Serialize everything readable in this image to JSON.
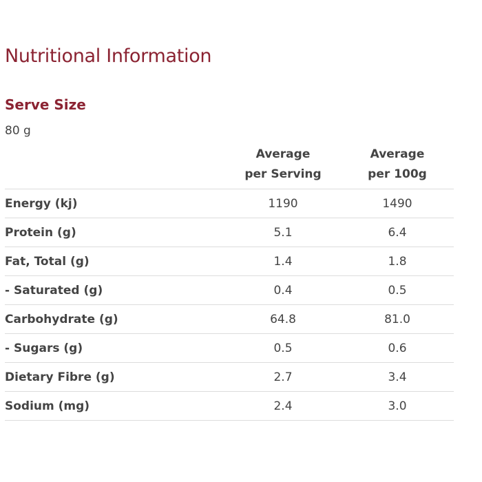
{
  "title": "Nutritional Information",
  "serve_size": {
    "heading": "Serve Size",
    "value": "80 g"
  },
  "table": {
    "headers": {
      "label": "",
      "per_serving_line1": "Average",
      "per_serving_line2": "per Serving",
      "per_100g_line1": "Average",
      "per_100g_line2": "per 100g"
    },
    "rows": [
      {
        "label": "Energy (kj)",
        "per_serving": "1190",
        "per_100g": "1490"
      },
      {
        "label": "Protein (g)",
        "per_serving": "5.1",
        "per_100g": "6.4"
      },
      {
        "label": "Fat, Total (g)",
        "per_serving": "1.4",
        "per_100g": "1.8"
      },
      {
        "label": "- Saturated (g)",
        "per_serving": "0.4",
        "per_100g": "0.5"
      },
      {
        "label": "Carbohydrate (g)",
        "per_serving": "64.8",
        "per_100g": "81.0"
      },
      {
        "label": "- Sugars (g)",
        "per_serving": "0.5",
        "per_100g": "0.6"
      },
      {
        "label": "Dietary Fibre (g)",
        "per_serving": "2.7",
        "per_100g": "3.4"
      },
      {
        "label": "Sodium (mg)",
        "per_serving": "2.4",
        "per_100g": "3.0"
      }
    ]
  },
  "colors": {
    "heading": "#8b2332",
    "text": "#444444",
    "divider": "#dcdcdc"
  }
}
